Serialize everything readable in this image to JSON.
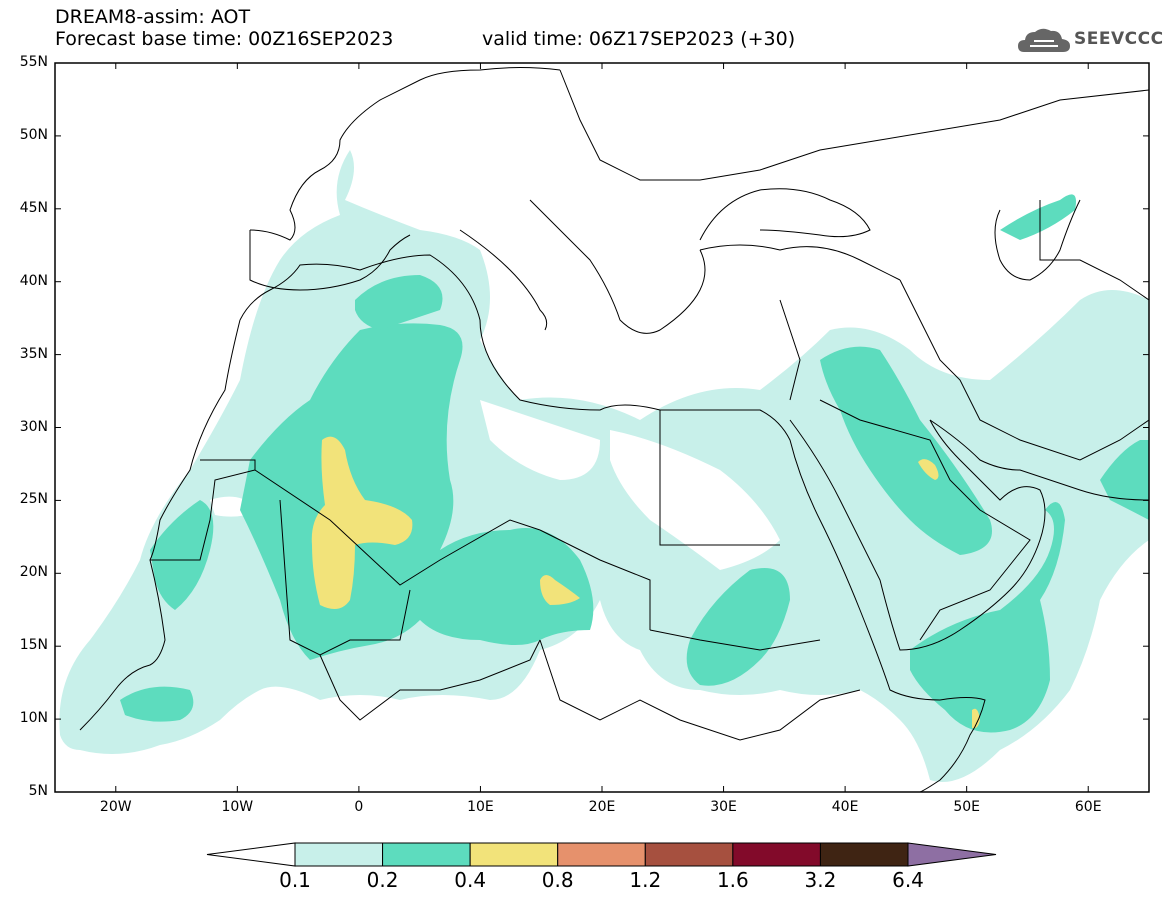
{
  "header": {
    "line1": "DREAM8-assim: AOT",
    "line2_left": "Forecast base time: 00Z16SEP2023",
    "line2_right": "valid time: 06Z17SEP2023 (+30)"
  },
  "logo": {
    "text": "SEEVCCC",
    "icon": "cloud-logo-icon"
  },
  "map": {
    "projection": "lat-lon",
    "lon_range": [
      -25,
      65
    ],
    "lat_range": [
      5,
      55
    ],
    "lat_labels": [
      "55N",
      "50N",
      "45N",
      "40N",
      "35N",
      "30N",
      "25N",
      "20N",
      "15N",
      "10N",
      "5N"
    ],
    "lon_labels": [
      "20W",
      "10W",
      "0",
      "10E",
      "20E",
      "30E",
      "40E",
      "50E",
      "60E"
    ],
    "variable": "AOT"
  },
  "colorbar": {
    "labels": [
      "0.1",
      "0.2",
      "0.4",
      "0.8",
      "1.2",
      "1.6",
      "3.2",
      "6.4"
    ],
    "colors": [
      "#ffffff",
      "#c8f0ea",
      "#5ddcbe",
      "#f2e37a",
      "#e6916c",
      "#a6503f",
      "#820a2a",
      "#3f2413",
      "#8e6fa3"
    ]
  }
}
